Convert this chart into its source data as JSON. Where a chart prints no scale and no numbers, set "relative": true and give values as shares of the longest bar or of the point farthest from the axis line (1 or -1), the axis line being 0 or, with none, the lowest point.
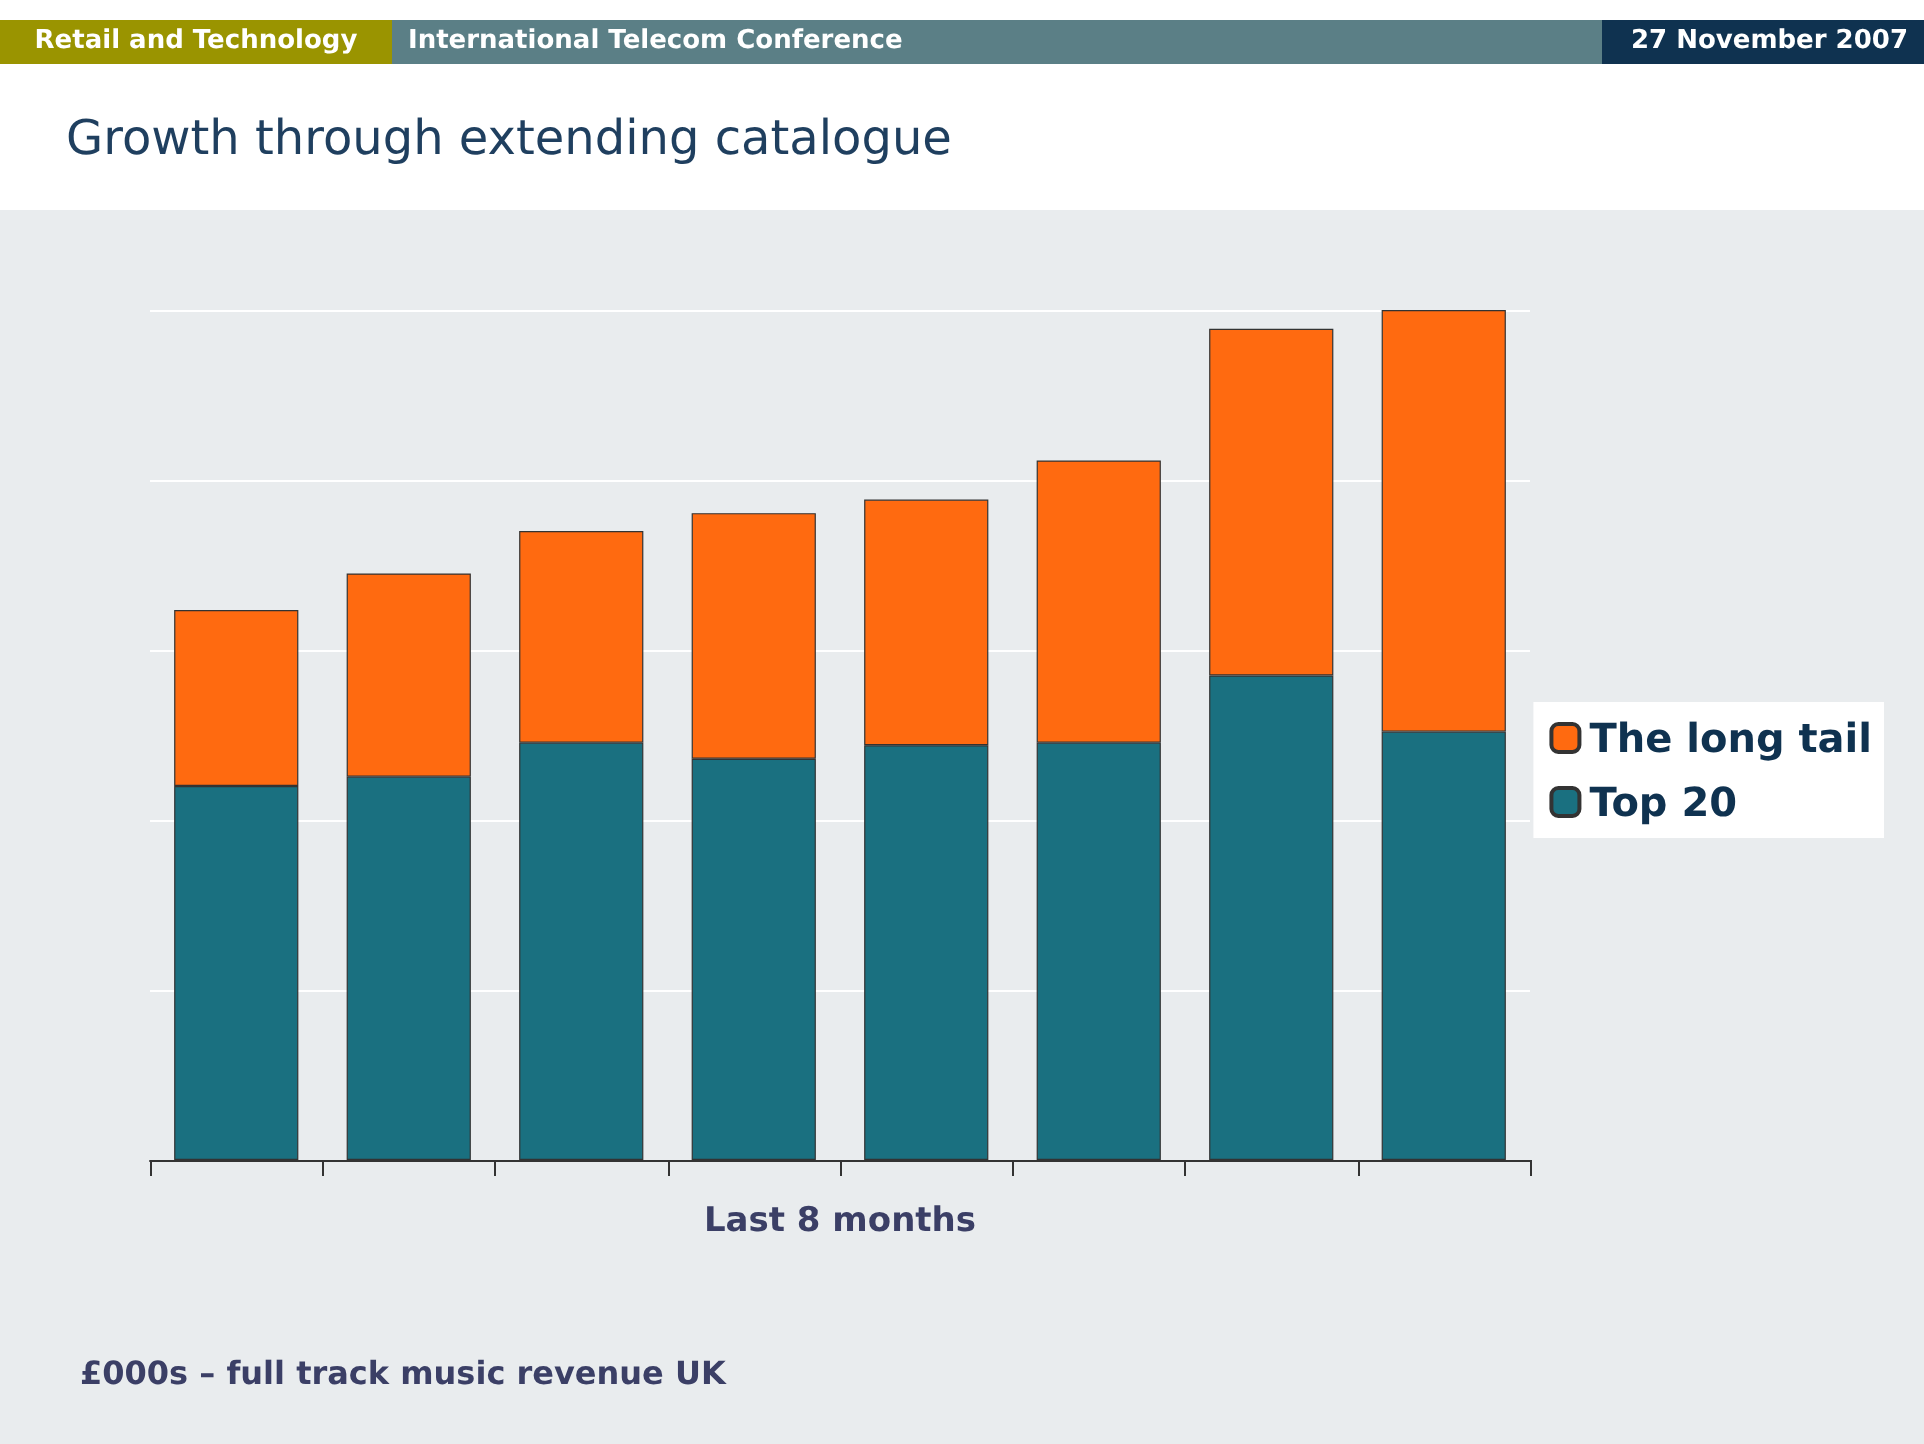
{
  "chart_data": {
    "type": "bar",
    "title": "Growth through extending catalogue",
    "xlabel": "Last 8 months",
    "annotations": [
      "Retail and Technology",
      "International Telecom Conference",
      "27 November 2007",
      "£000s – full track music revenue UK"
    ],
    "categories": [
      null,
      null,
      null,
      null,
      null,
      null,
      null,
      null
    ],
    "stacked": true,
    "relative": true,
    "grid": "y",
    "legend": "right",
    "series": [
      {
        "name": "Top 20",
        "color": "#1a7080",
        "values": [
          0.44,
          0.451,
          0.491,
          0.472,
          0.488,
          0.491,
          0.57,
          0.504
        ]
      },
      {
        "name": "The long tail",
        "color": "#ff6a10",
        "values": [
          0.207,
          0.239,
          0.249,
          0.289,
          0.289,
          0.332,
          0.408,
          0.496
        ]
      }
    ]
  }
}
